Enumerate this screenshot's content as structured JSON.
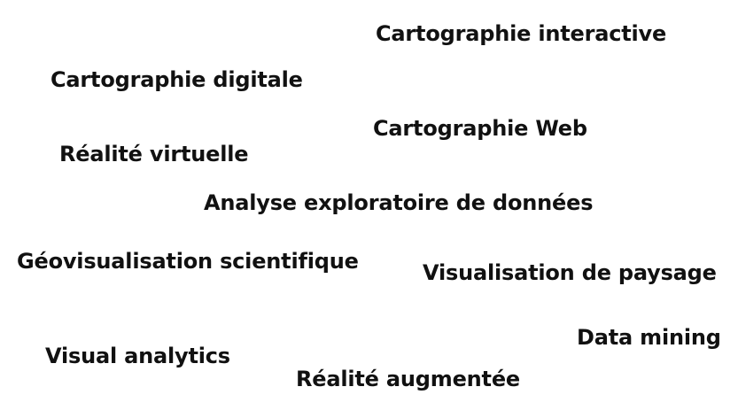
{
  "terms": [
    "Cartographie interactive",
    "Cartographie digitale",
    "Cartographie Web",
    "Réalité virtuelle",
    "Analyse exploratoire de données",
    "Géovisualisation scientifique",
    "Visualisation de paysage",
    "Data mining",
    "Visual analytics",
    "Réalité augmentée"
  ],
  "colors": {
    "background": "#ffffff",
    "text": "#111111"
  }
}
